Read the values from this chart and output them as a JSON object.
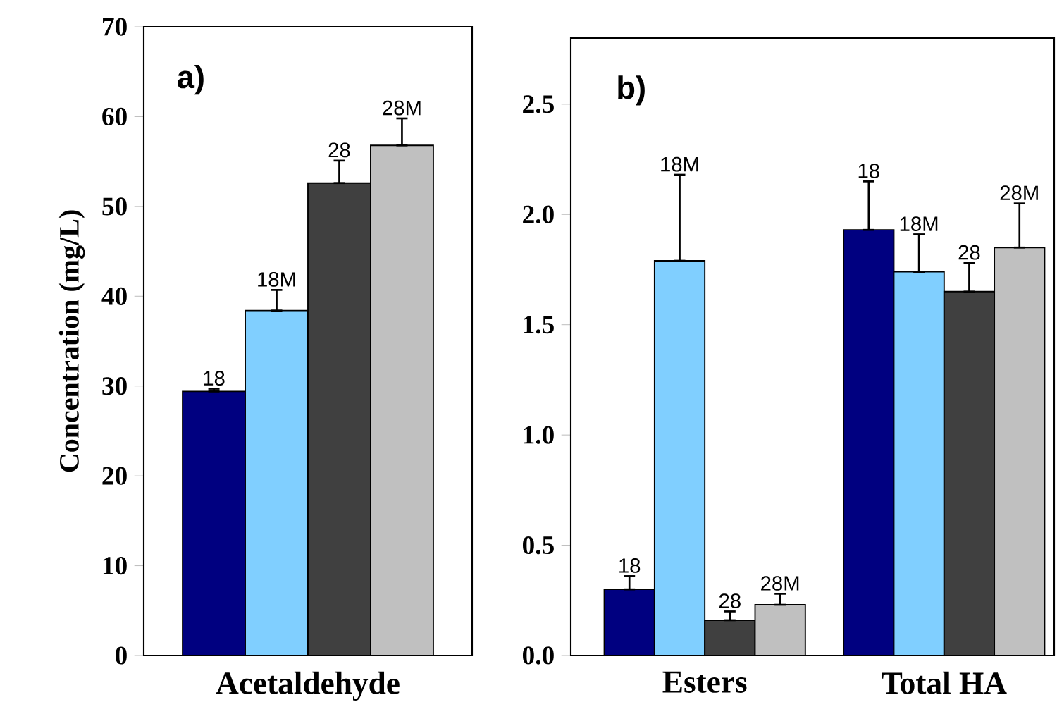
{
  "chart_data": [
    {
      "type": "bar",
      "ylabel": "Concentration (mg/L)",
      "categories": [
        "Acetaldehyde"
      ],
      "annotations": [
        "a)"
      ],
      "ylim": [
        0,
        70
      ],
      "yticks": [
        0,
        10,
        20,
        30,
        40,
        50,
        60,
        70
      ],
      "series": [
        {
          "name": "18",
          "color": "#000080",
          "values": [
            29.4
          ],
          "errors": [
            [
              29.4,
              29.7
            ]
          ]
        },
        {
          "name": "18M",
          "color": "#80cfff",
          "values": [
            38.4
          ],
          "errors": [
            [
              38.4,
              40.7
            ]
          ]
        },
        {
          "name": "28",
          "color": "#404040",
          "values": [
            52.6
          ],
          "errors": [
            [
              52.6,
              55.1
            ]
          ]
        },
        {
          "name": "28M",
          "color": "#c0c0c0",
          "values": [
            56.8
          ],
          "errors": [
            [
              56.8,
              59.8
            ]
          ]
        }
      ]
    },
    {
      "type": "bar",
      "categories": [
        "Esters",
        "Total HA"
      ],
      "annotations": [
        "b)"
      ],
      "ylim": [
        0,
        2.8
      ],
      "yticks": [
        {
          "value": 0,
          "label": "0.0"
        },
        {
          "value": 0.5,
          "label": "0.5"
        },
        {
          "value": 1,
          "label": "1.0"
        },
        {
          "value": 1.5,
          "label": "1.5"
        },
        {
          "value": 2,
          "label": "2.0"
        },
        {
          "value": 2.5,
          "label": "2.5"
        }
      ],
      "series": [
        {
          "name": "18",
          "color": "#000080",
          "values": [
            0.3,
            1.93
          ],
          "errors": [
            [
              0.3,
              0.36
            ],
            [
              1.93,
              2.15
            ]
          ]
        },
        {
          "name": "18M",
          "color": "#80cfff",
          "values": [
            1.79,
            1.74
          ],
          "errors": [
            [
              1.79,
              2.18
            ],
            [
              1.74,
              1.91
            ]
          ]
        },
        {
          "name": "28",
          "color": "#404040",
          "values": [
            0.16,
            1.65
          ],
          "errors": [
            [
              0.16,
              0.2
            ],
            [
              1.65,
              1.78
            ]
          ]
        },
        {
          "name": "28M",
          "color": "#c0c0c0",
          "values": [
            0.23,
            1.85
          ],
          "errors": [
            [
              0.23,
              0.28
            ],
            [
              1.85,
              2.05
            ]
          ]
        }
      ]
    }
  ]
}
